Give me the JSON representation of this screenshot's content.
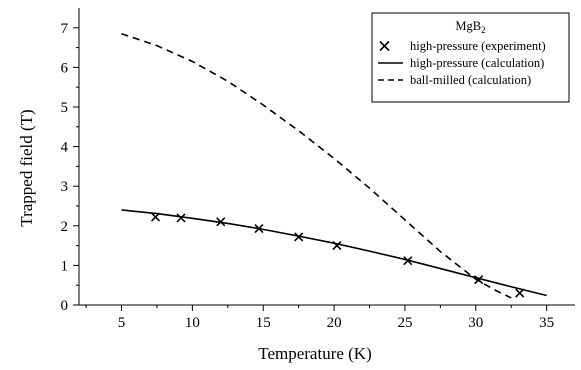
{
  "chart_data": {
    "type": "line",
    "xlabel": "Temperature (K)",
    "ylabel": "Trapped field (T)",
    "xlim": [
      2,
      37
    ],
    "ylim": [
      0,
      7.5
    ],
    "x_major_ticks": [
      5,
      10,
      15,
      20,
      25,
      30,
      35
    ],
    "y_major_ticks": [
      0,
      1,
      2,
      3,
      4,
      5,
      6,
      7
    ],
    "grid": false,
    "legend": {
      "placement": "top-right",
      "title": "MgB",
      "title_subscript": "2"
    },
    "series": [
      {
        "name": "high-pressure (experiment)",
        "style": "markers-x",
        "color": "#000000",
        "x": [
          7.4,
          9.2,
          12.0,
          14.7,
          17.5,
          20.2,
          25.2,
          30.2,
          33.1
        ],
        "y": [
          2.22,
          2.2,
          2.1,
          1.93,
          1.72,
          1.5,
          1.12,
          0.64,
          0.3
        ]
      },
      {
        "name": "high-pressure (calculation)",
        "style": "solid",
        "color": "#000000",
        "x": [
          5,
          7.5,
          10,
          12.5,
          15,
          17.5,
          20,
          22.5,
          25,
          27.5,
          30,
          32.5,
          35
        ],
        "y": [
          2.4,
          2.31,
          2.19,
          2.06,
          1.91,
          1.74,
          1.56,
          1.36,
          1.15,
          0.92,
          0.69,
          0.46,
          0.24
        ]
      },
      {
        "name": "ball-milled (calculation)",
        "style": "dashed",
        "color": "#000000",
        "x": [
          5,
          7.5,
          10,
          12.5,
          15,
          17.5,
          20,
          22.5,
          25,
          27.5,
          30,
          31.5,
          32.5
        ],
        "y": [
          6.85,
          6.55,
          6.15,
          5.65,
          5.05,
          4.4,
          3.7,
          2.95,
          2.15,
          1.35,
          0.65,
          0.35,
          0.18
        ]
      }
    ]
  }
}
